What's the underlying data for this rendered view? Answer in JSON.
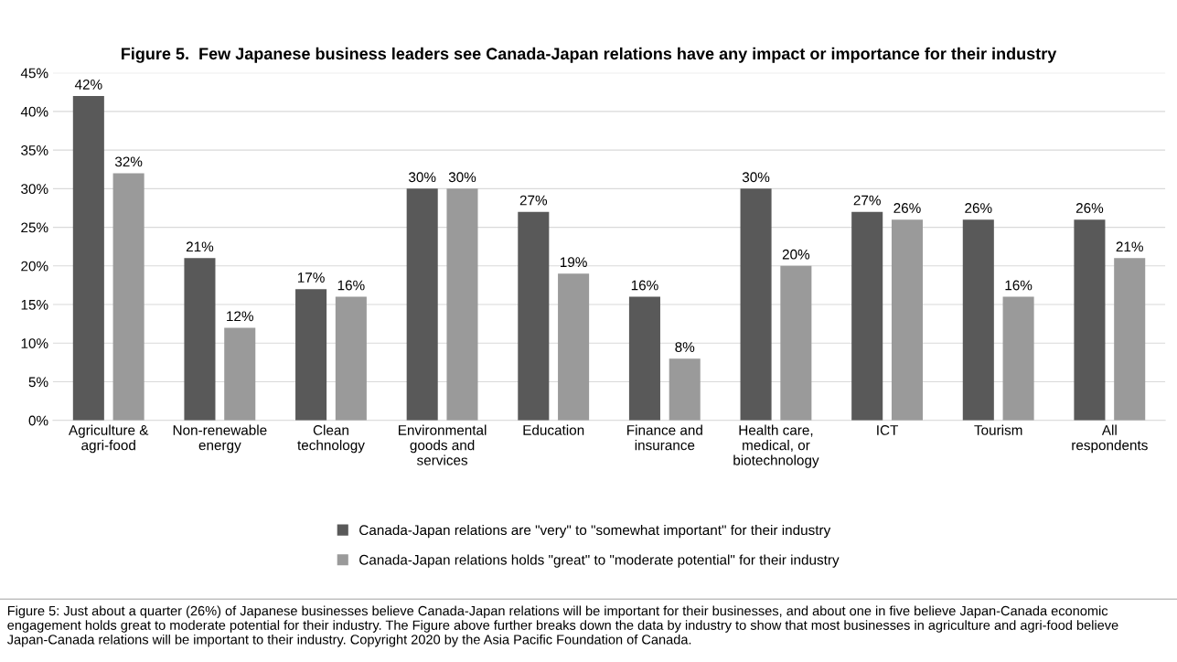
{
  "chart_data": {
    "type": "bar",
    "title": "Figure 5.  Few Japanese business leaders see Canada-Japan relations have any impact or importance for their industry",
    "categories": [
      "Agriculture &\nagri-food",
      "Non-renewable\nenergy",
      "Clean\ntechnology",
      "Environmental\ngoods and\nservices",
      "Education",
      "Finance and\ninsurance",
      "Health care,\nmedical, or\nbiotechnology",
      "ICT",
      "Tourism",
      "All\nrespondents"
    ],
    "series": [
      {
        "name": "Canada-Japan relations are \"very\" to \"somewhat important\" for their industry",
        "color": "#595959",
        "values": [
          42,
          21,
          17,
          30,
          27,
          16,
          30,
          27,
          26,
          26
        ],
        "value_labels": [
          "42%",
          "21%",
          "17%",
          "30%",
          "27%",
          "16%",
          "30%",
          "27%",
          "26%",
          "26%"
        ]
      },
      {
        "name": "Canada-Japan relations holds \"great\" to \"moderate potential\" for their industry",
        "color": "#9a9a9a",
        "values": [
          32,
          12,
          16,
          30,
          19,
          8,
          20,
          26,
          16,
          21
        ],
        "value_labels": [
          "32%",
          "12%",
          "16%",
          "30%",
          "19%",
          "8%",
          "20%",
          "26%",
          "16%",
          "21%"
        ]
      }
    ],
    "ylim": [
      0,
      45
    ],
    "yticks": [
      {
        "value": 0,
        "label": "0%"
      },
      {
        "value": 5,
        "label": "5%"
      },
      {
        "value": 10,
        "label": "10%"
      },
      {
        "value": 15,
        "label": "15%"
      },
      {
        "value": 20,
        "label": "20%"
      },
      {
        "value": 25,
        "label": "25%"
      },
      {
        "value": 30,
        "label": "30%"
      },
      {
        "value": 35,
        "label": "35%"
      },
      {
        "value": 40,
        "label": "40%"
      },
      {
        "value": 45,
        "label": "45%"
      }
    ],
    "grid": "y",
    "legend": "bottom",
    "annotations": [
      "Figure 5: Just about a quarter (26%) of Japanese businesses believe Canada-Japan relations will be important for their businesses, and about one in five believe Japan-Canada economic engagement holds great to moderate potential for their industry. The Figure above further breaks down the data by industry to show that most businesses in agriculture and agri-food believe Japan-Canada relations will be important to their industry. Copyright 2020 by the Asia Pacific Foundation of Canada."
    ]
  }
}
